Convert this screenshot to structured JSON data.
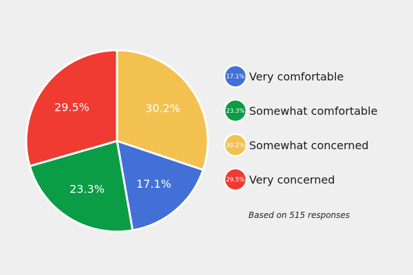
{
  "chart_data": {
    "type": "pie",
    "categories": [
      "Somewhat concerned",
      "Very comfortable",
      "Somewhat comfortable",
      "Very concerned"
    ],
    "values": [
      30.2,
      17.1,
      23.3,
      29.5
    ],
    "labels": [
      "30.2%",
      "17.1%",
      "23.3%",
      "29.5%"
    ],
    "colors": [
      "#f2c150",
      "#4270d6",
      "#0b9c46",
      "#ef3b31"
    ],
    "legend": [
      {
        "label": "Very comfortable",
        "badge": "17.1%",
        "color": "#4270d6"
      },
      {
        "label": "Somewhat comfortable",
        "badge": "23.3%",
        "color": "#0b9c46"
      },
      {
        "label": "Somewhat concerned",
        "badge": "30.2%",
        "color": "#f2c150"
      },
      {
        "label": "Very concerned",
        "badge": "29.5%",
        "color": "#ef3b31"
      }
    ],
    "legend_position": "right",
    "note": "Based on 515 responses"
  }
}
